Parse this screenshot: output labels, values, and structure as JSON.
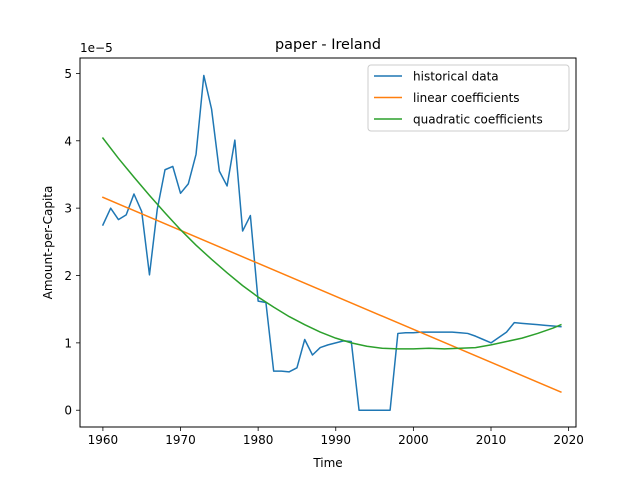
{
  "chart_data": {
    "type": "line",
    "title": "paper - Ireland",
    "xlabel": "Time",
    "ylabel": "Amount-per-Capita",
    "offset_text": "1e−5",
    "xlim": [
      1957.05,
      2020.95
    ],
    "ylim": [
      -0.249,
      5.229
    ],
    "x_ticks": [
      1960,
      1970,
      1980,
      1990,
      2000,
      2010,
      2020
    ],
    "x_tick_labels": [
      "1960",
      "1970",
      "1980",
      "1990",
      "2000",
      "2010",
      "2020"
    ],
    "y_ticks": [
      0,
      1,
      2,
      3,
      4,
      5
    ],
    "y_tick_labels": [
      "0",
      "1",
      "2",
      "3",
      "4",
      "5"
    ],
    "grid": false,
    "legend": {
      "position": "top-right"
    },
    "series": [
      {
        "name": "historical data",
        "color": "#1f77b4",
        "x": [
          1960,
          1961,
          1962,
          1963,
          1964,
          1965,
          1966,
          1967,
          1968,
          1969,
          1970,
          1971,
          1972,
          1973,
          1974,
          1975,
          1976,
          1977,
          1978,
          1979,
          1980,
          1981,
          1982,
          1983,
          1984,
          1985,
          1986,
          1987,
          1988,
          1989,
          1990,
          1991,
          1992,
          1993,
          1994,
          1995,
          1996,
          1997,
          1998,
          1999,
          2000,
          2001,
          2002,
          2003,
          2004,
          2005,
          2006,
          2007,
          2008,
          2009,
          2010,
          2011,
          2012,
          2013,
          2014,
          2015,
          2016,
          2017,
          2018,
          2019
        ],
        "y": [
          2.75,
          3.0,
          2.83,
          2.9,
          3.21,
          2.95,
          2.01,
          2.98,
          3.57,
          3.62,
          3.22,
          3.36,
          3.8,
          4.97,
          4.47,
          3.55,
          3.33,
          4.01,
          2.66,
          2.89,
          1.62,
          1.6,
          0.58,
          0.58,
          0.57,
          0.63,
          1.05,
          0.82,
          0.93,
          0.97,
          1.0,
          1.03,
          1.02,
          0.0,
          0.0,
          0.0,
          0.0,
          0.0,
          1.14,
          1.15,
          1.15,
          1.16,
          1.16,
          1.16,
          1.16,
          1.16,
          1.15,
          1.14,
          1.1,
          1.05,
          1.0,
          1.08,
          1.16,
          1.3,
          1.29,
          1.28,
          1.27,
          1.26,
          1.25,
          1.24
        ]
      },
      {
        "name": "linear coefficients",
        "color": "#ff7f0e",
        "x": [
          1960,
          2019
        ],
        "y": [
          3.16,
          0.27
        ]
      },
      {
        "name": "quadratic coefficients",
        "color": "#2ca02c",
        "x": [
          1960,
          1962,
          1964,
          1966,
          1968,
          1970,
          1972,
          1974,
          1976,
          1978,
          1980,
          1982,
          1984,
          1986,
          1988,
          1990,
          1992,
          1994,
          1996,
          1998,
          2000,
          2002,
          2004,
          2006,
          2008,
          2010,
          2012,
          2014,
          2016,
          2018,
          2019
        ],
        "y": [
          4.04,
          3.74,
          3.46,
          3.19,
          2.93,
          2.68,
          2.45,
          2.24,
          2.04,
          1.85,
          1.68,
          1.53,
          1.39,
          1.27,
          1.16,
          1.07,
          1.0,
          0.95,
          0.92,
          0.91,
          0.91,
          0.92,
          0.91,
          0.92,
          0.93,
          0.97,
          1.02,
          1.07,
          1.14,
          1.22,
          1.27
        ]
      }
    ]
  }
}
